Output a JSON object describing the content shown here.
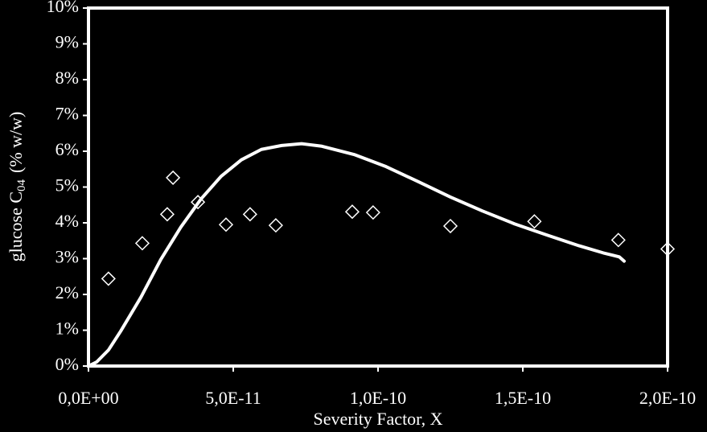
{
  "chart_data": {
    "type": "scatter",
    "x_label": "Severity Factor, X",
    "y_label": {
      "main": "glucose C",
      "sub": "04",
      "unit": "(% w/w)"
    },
    "xlim": [
      0,
      2e-10
    ],
    "xticks": [
      {
        "value": 0,
        "label": "0,0E+00"
      },
      {
        "value": 5e-11,
        "label": "5,0E-11"
      },
      {
        "value": 1e-10,
        "label": "1,0E-10"
      },
      {
        "value": 1.5e-10,
        "label": "1,5E-10"
      },
      {
        "value": 2e-10,
        "label": "2,0E-10"
      }
    ],
    "ylim": [
      0,
      10
    ],
    "yticks": [
      {
        "value": 0,
        "label": "0%"
      },
      {
        "value": 1,
        "label": "1%"
      },
      {
        "value": 2,
        "label": "2%"
      },
      {
        "value": 3,
        "label": "3%"
      },
      {
        "value": 4,
        "label": "4%"
      },
      {
        "value": 5,
        "label": "5%"
      },
      {
        "value": 6,
        "label": "6%"
      },
      {
        "value": 7,
        "label": "7%"
      },
      {
        "value": 8,
        "label": "8%"
      },
      {
        "value": 9,
        "label": "9%"
      },
      {
        "value": 10,
        "label": "10%"
      }
    ],
    "series": [
      {
        "type": "scatter",
        "color": "#ffffff",
        "x": [
          6.9e-12,
          1.86e-11,
          2.72e-11,
          2.92e-11,
          3.78e-11,
          4.75e-11,
          5.58e-11,
          6.47e-11,
          9.11e-11,
          9.83e-11,
          1.25e-10,
          1.54e-10,
          1.83e-10,
          2e-10
        ],
        "values": [
          2.44,
          3.43,
          4.24,
          5.26,
          4.58,
          3.95,
          4.24,
          3.93,
          4.31,
          4.29,
          3.91,
          4.04,
          3.52,
          3.27
        ]
      },
      {
        "type": "line",
        "color": "#ffffff",
        "x": [
          0,
          2.78e-12,
          6.94e-12,
          1.11e-11,
          1.81e-11,
          2.5e-11,
          3.19e-11,
          3.89e-11,
          4.58e-11,
          5.28e-11,
          5.97e-11,
          6.67e-11,
          7.36e-11,
          8.06e-11,
          9.17e-11,
          1.028e-10,
          1.139e-10,
          1.25e-10,
          1.361e-10,
          1.472e-10,
          1.583e-10,
          1.694e-10,
          1.778e-10,
          1.833e-10,
          1.85e-10
        ],
        "values": [
          0,
          0.11,
          0.45,
          0.97,
          1.92,
          2.98,
          3.88,
          4.67,
          5.3,
          5.76,
          6.05,
          6.16,
          6.21,
          6.14,
          5.91,
          5.57,
          5.15,
          4.72,
          4.33,
          3.97,
          3.66,
          3.36,
          3.16,
          3.05,
          2.93
        ]
      }
    ]
  }
}
